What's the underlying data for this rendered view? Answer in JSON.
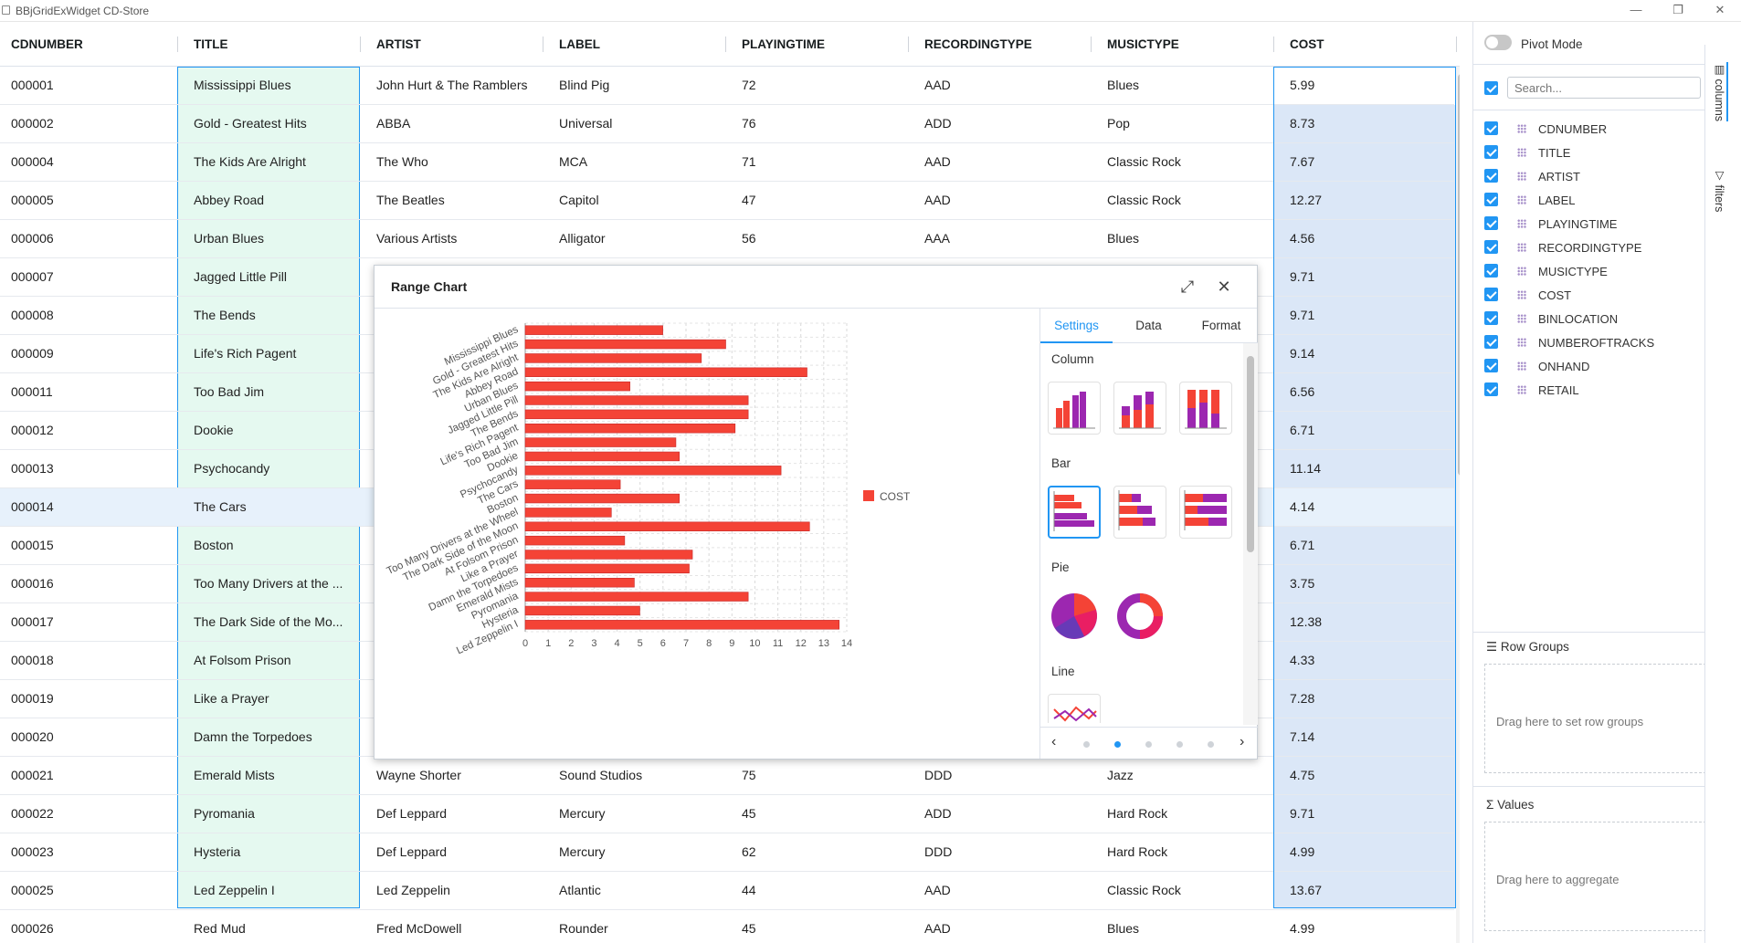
{
  "window": {
    "title": "BBjGridExWidget CD-Store",
    "minimize": "—",
    "restore": "❐",
    "close": "✕"
  },
  "columns": [
    "CDNUMBER",
    "TITLE",
    "ARTIST",
    "LABEL",
    "PLAYINGTIME",
    "RECORDINGTYPE",
    "MUSICTYPE",
    "COST"
  ],
  "rows": [
    {
      "cdnumber": "000001",
      "title": "Mississippi Blues",
      "artist": "John Hurt & The Ramblers",
      "label": "Blind Pig",
      "playingtime": "72",
      "recordingtype": "AAD",
      "musictype": "Blues",
      "cost": "5.99"
    },
    {
      "cdnumber": "000002",
      "title": "Gold - Greatest Hits",
      "artist": "ABBA",
      "label": "Universal",
      "playingtime": "76",
      "recordingtype": "ADD",
      "musictype": "Pop",
      "cost": "8.73"
    },
    {
      "cdnumber": "000004",
      "title": "The Kids Are Alright",
      "artist": "The Who",
      "label": "MCA",
      "playingtime": "71",
      "recordingtype": "AAD",
      "musictype": "Classic Rock",
      "cost": "7.67"
    },
    {
      "cdnumber": "000005",
      "title": "Abbey Road",
      "artist": "The Beatles",
      "label": "Capitol",
      "playingtime": "47",
      "recordingtype": "AAD",
      "musictype": "Classic Rock",
      "cost": "12.27"
    },
    {
      "cdnumber": "000006",
      "title": "Urban Blues",
      "artist": "Various Artists",
      "label": "Alligator",
      "playingtime": "56",
      "recordingtype": "AAA",
      "musictype": "Blues",
      "cost": "4.56"
    },
    {
      "cdnumber": "000007",
      "title": "Jagged Little Pill",
      "artist": "",
      "label": "",
      "playingtime": "",
      "recordingtype": "",
      "musictype": "",
      "cost": "9.71"
    },
    {
      "cdnumber": "000008",
      "title": "The Bends",
      "artist": "",
      "label": "",
      "playingtime": "",
      "recordingtype": "",
      "musictype": "",
      "cost": "9.71"
    },
    {
      "cdnumber": "000009",
      "title": "Life's Rich Pagent",
      "artist": "",
      "label": "",
      "playingtime": "",
      "recordingtype": "",
      "musictype": "",
      "cost": "9.14"
    },
    {
      "cdnumber": "000011",
      "title": "Too Bad Jim",
      "artist": "",
      "label": "",
      "playingtime": "",
      "recordingtype": "",
      "musictype": "",
      "cost": "6.56"
    },
    {
      "cdnumber": "000012",
      "title": "Dookie",
      "artist": "",
      "label": "",
      "playingtime": "",
      "recordingtype": "",
      "musictype": "",
      "cost": "6.71"
    },
    {
      "cdnumber": "000013",
      "title": "Psychocandy",
      "artist": "",
      "label": "",
      "playingtime": "",
      "recordingtype": "",
      "musictype": "",
      "cost": "11.14"
    },
    {
      "cdnumber": "000014",
      "title": "The Cars",
      "artist": "",
      "label": "",
      "playingtime": "",
      "recordingtype": "",
      "musictype": "",
      "cost": "4.14"
    },
    {
      "cdnumber": "000015",
      "title": "Boston",
      "artist": "",
      "label": "",
      "playingtime": "",
      "recordingtype": "",
      "musictype": "",
      "cost": "6.71"
    },
    {
      "cdnumber": "000016",
      "title": "Too Many Drivers at the ...",
      "artist": "",
      "label": "",
      "playingtime": "",
      "recordingtype": "",
      "musictype": "",
      "cost": "3.75"
    },
    {
      "cdnumber": "000017",
      "title": "The Dark Side of the Mo...",
      "artist": "",
      "label": "",
      "playingtime": "",
      "recordingtype": "",
      "musictype": "",
      "cost": "12.38"
    },
    {
      "cdnumber": "000018",
      "title": "At Folsom Prison",
      "artist": "",
      "label": "",
      "playingtime": "",
      "recordingtype": "",
      "musictype": "",
      "cost": "4.33"
    },
    {
      "cdnumber": "000019",
      "title": "Like a Prayer",
      "artist": "",
      "label": "",
      "playingtime": "",
      "recordingtype": "",
      "musictype": "",
      "cost": "7.28"
    },
    {
      "cdnumber": "000020",
      "title": "Damn the Torpedoes",
      "artist": "",
      "label": "",
      "playingtime": "",
      "recordingtype": "",
      "musictype": "",
      "cost": "7.14"
    },
    {
      "cdnumber": "000021",
      "title": "Emerald Mists",
      "artist": "Wayne Shorter",
      "label": "Sound Studios",
      "playingtime": "75",
      "recordingtype": "DDD",
      "musictype": "Jazz",
      "cost": "4.75"
    },
    {
      "cdnumber": "000022",
      "title": "Pyromania",
      "artist": "Def Leppard",
      "label": "Mercury",
      "playingtime": "45",
      "recordingtype": "ADD",
      "musictype": "Hard Rock",
      "cost": "9.71"
    },
    {
      "cdnumber": "000023",
      "title": "Hysteria",
      "artist": "Def Leppard",
      "label": "Mercury",
      "playingtime": "62",
      "recordingtype": "DDD",
      "musictype": "Hard Rock",
      "cost": "4.99"
    },
    {
      "cdnumber": "000025",
      "title": "Led Zeppelin I",
      "artist": "Led Zeppelin",
      "label": "Atlantic",
      "playingtime": "44",
      "recordingtype": "AAD",
      "musictype": "Classic Rock",
      "cost": "13.67"
    },
    {
      "cdnumber": "000026",
      "title": "Red Mud",
      "artist": "Fred McDowell",
      "label": "Rounder",
      "playingtime": "45",
      "recordingtype": "AAD",
      "musictype": "Blues",
      "cost": "4.99"
    }
  ],
  "selected_row_index": 11,
  "sidebar": {
    "pivot_mode": "Pivot Mode",
    "search_placeholder": "Search...",
    "columns": [
      "CDNUMBER",
      "TITLE",
      "ARTIST",
      "LABEL",
      "PLAYINGTIME",
      "RECORDINGTYPE",
      "MUSICTYPE",
      "COST",
      "BINLOCATION",
      "NUMBEROFTRACKS",
      "ONHAND",
      "RETAIL"
    ],
    "row_groups_title": "Row Groups",
    "row_groups_hint": "Drag here to set row groups",
    "values_title": "Values",
    "values_hint": "Drag here to aggregate",
    "tabs": [
      "columns",
      "filters"
    ]
  },
  "dialog": {
    "title": "Range Chart",
    "tabs": [
      "Settings",
      "Data",
      "Format"
    ],
    "groups": [
      "Column",
      "Bar",
      "Pie",
      "Line"
    ],
    "page_dots": 5,
    "active_dot": 1
  },
  "colors": {
    "accent": "#2196f3",
    "bar": "#f44336",
    "purple": "#9c27b0",
    "title_col_bg": "#e5f9f0",
    "cost_col_bg": "#dbe7f7"
  },
  "chart_data": {
    "type": "bar",
    "orientation": "horizontal",
    "categories": [
      "Mississippi Blues",
      "Gold - Greatest Hits",
      "The Kids Are Alright",
      "Abbey Road",
      "Urban Blues",
      "Jagged Little Pill",
      "The Bends",
      "Life's Rich Pagent",
      "Too Bad Jim",
      "Dookie",
      "Psychocandy",
      "The Cars",
      "Boston",
      "Too Many Drivers at the Wheel",
      "The Dark Side of the Moon",
      "At Folsom Prison",
      "Like a Prayer",
      "Damn the Torpedoes",
      "Emerald Mists",
      "Pyromania",
      "Hysteria",
      "Led Zeppelin I"
    ],
    "series": [
      {
        "name": "COST",
        "values": [
          5.99,
          8.73,
          7.67,
          12.27,
          4.56,
          9.71,
          9.71,
          9.14,
          6.56,
          6.71,
          11.14,
          4.14,
          6.71,
          3.75,
          12.38,
          4.33,
          7.28,
          7.14,
          4.75,
          9.71,
          4.99,
          13.67
        ]
      }
    ],
    "xlim": [
      0,
      14
    ],
    "xticks": [
      "0",
      "1",
      "2",
      "3",
      "4",
      "5",
      "6",
      "7",
      "8",
      "9",
      "10",
      "11",
      "12",
      "13",
      "14"
    ],
    "legend": "right",
    "grid": true
  }
}
